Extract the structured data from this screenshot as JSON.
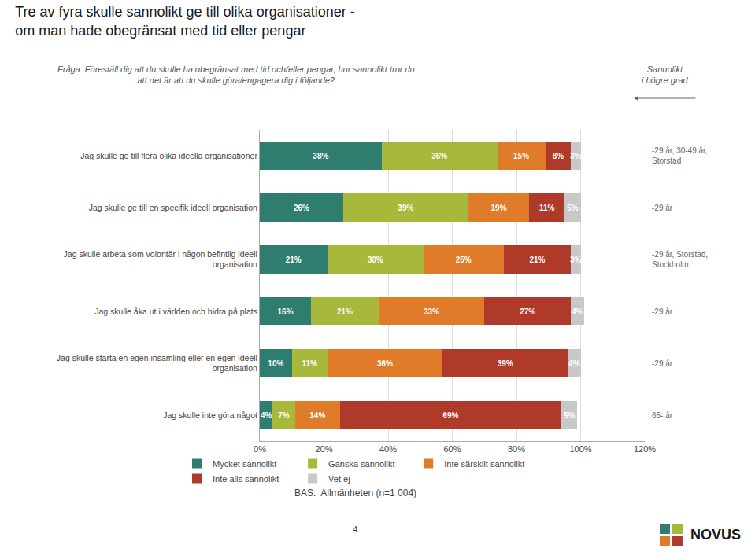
{
  "chart_data": {
    "type": "bar",
    "orientation": "horizontal",
    "stacked": true,
    "title": "Tre av fyra skulle sannolikt ge till olika organisationer -\nom man hade obegränsat med tid eller pengar",
    "subtitle": "Fråga: Föreställ dig att du skulle ha obegränsat med tid och/eller pengar, hur sannolikt tror du\natt det är att du skulle göra/engagera dig i följande?",
    "categories": [
      "Jag skulle ge till flera olika ideella organisationer",
      "Jag skulle ge till en specifik ideell organisation",
      "Jag skulle arbeta som volontär i någon befintlig ideell\norganisation",
      "Jag skulle åka ut i världen och bidra på plats",
      "Jag skulle starta en egen insamling eller en egen ideell\norganisation",
      "Jag skulle inte göra något"
    ],
    "series": [
      {
        "name": "Mycket sannolikt",
        "color": "#2e7d6e",
        "values": [
          38,
          26,
          21,
          16,
          10,
          4
        ],
        "value_labels": [
          "38%",
          "26%",
          "21%",
          "16%",
          "10%",
          "4%"
        ]
      },
      {
        "name": "Ganska sannolikt",
        "color": "#a8b83a",
        "values": [
          36,
          39,
          30,
          21,
          11,
          7
        ],
        "value_labels": [
          "36%",
          "39%",
          "30%",
          "21%",
          "11%",
          "7%"
        ]
      },
      {
        "name": "Inte särskilt sannolikt",
        "color": "#e07b2a",
        "values": [
          15,
          19,
          25,
          33,
          36,
          14
        ],
        "value_labels": [
          "15%",
          "19%",
          "25%",
          "33%",
          "36%",
          "14%"
        ]
      },
      {
        "name": "Inte alls sannolikt",
        "color": "#b03a2a",
        "values": [
          8,
          11,
          21,
          27,
          39,
          69
        ],
        "value_labels": [
          "8%",
          "11%",
          "21%",
          "27%",
          "39%",
          "69%"
        ]
      },
      {
        "name": "Vet ej",
        "color": "#c8c8c8",
        "values": [
          3,
          5,
          3,
          4,
          4,
          5
        ],
        "value_labels": [
          "3%",
          "5%",
          "3%",
          "4%",
          "4%",
          "5%"
        ]
      }
    ],
    "xlim": [
      0,
      120
    ],
    "xticks": [
      {
        "value": 0,
        "label": "0%"
      },
      {
        "value": 20,
        "label": "20%"
      },
      {
        "value": 40,
        "label": "40%"
      },
      {
        "value": 60,
        "label": "60%"
      },
      {
        "value": 80,
        "label": "80%"
      },
      {
        "value": 100,
        "label": "100%"
      },
      {
        "value": 120,
        "label": "120%"
      }
    ],
    "grid": true,
    "legend": "bottom",
    "data_labels": true,
    "annotations": [
      {
        "category": "Jag skulle ge till flera olika ideella organisationer",
        "text": "-29 år, 30-49 år,\nStorstad"
      },
      {
        "category": "Jag skulle ge till en specifik ideell organisation",
        "text": "-29 år"
      },
      {
        "category": "Jag skulle arbeta som volontär i någon befintlig ideell\norganisation",
        "text": "-29 år, Storstad,\nStockholm"
      },
      {
        "category": "Jag skulle åka ut i världen och bidra på plats",
        "text": "-29 år"
      },
      {
        "category": "Jag skulle starta en egen insamling eller en egen ideell\norganisation",
        "text": "-29 år"
      },
      {
        "category": "Jag skulle inte göra något",
        "text": "65- år"
      },
      {
        "text": "Sannolikt\ni högre grad"
      },
      {
        "text": "BAS:  Allmänheten (n=1 004)"
      },
      {
        "text": "4"
      },
      {
        "text": "NOVUS"
      }
    ]
  }
}
